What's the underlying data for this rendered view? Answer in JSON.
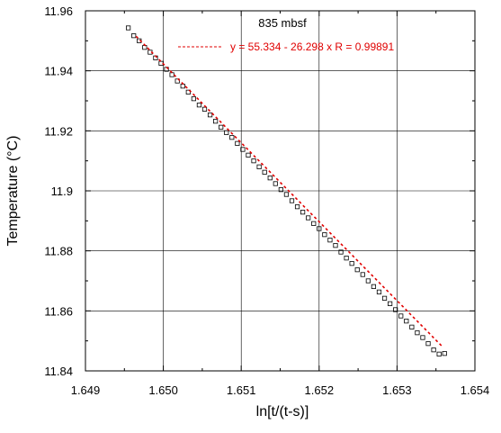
{
  "chart_data": {
    "type": "scatter",
    "title": "835 mbsf",
    "xlabel": "ln[t/(t-s)]",
    "ylabel": "Temperature  (°C)",
    "xlim": [
      1.649,
      1.654
    ],
    "ylim": [
      11.84,
      11.96
    ],
    "x_ticks": [
      "1.649",
      "1.650",
      "1.651",
      "1.652",
      "1.653",
      "1.654"
    ],
    "y_ticks": [
      "11.84",
      "11.86",
      "11.88",
      "11.9",
      "11.92",
      "11.94",
      "11.96"
    ],
    "grid": true,
    "fit": {
      "label": "y = 55.334 - 26.298  x R = 0.99891",
      "intercept": 55.334,
      "slope": -26.298,
      "x_range": [
        1.64965,
        1.65358
      ],
      "color": "#e00000"
    },
    "marker_color": "#000000",
    "points": {
      "x": [
        1.64955,
        1.64962,
        1.64969,
        1.64976,
        1.64983,
        1.6499,
        1.64997,
        1.65004,
        1.65011,
        1.65018,
        1.65025,
        1.65032,
        1.65039,
        1.65046,
        1.65053,
        1.6506,
        1.65067,
        1.65074,
        1.65081,
        1.65088,
        1.65095,
        1.65102,
        1.65109,
        1.65116,
        1.65123,
        1.6513,
        1.65137,
        1.65144,
        1.65151,
        1.65158,
        1.65165,
        1.65172,
        1.65179,
        1.65186,
        1.65193,
        1.652,
        1.65207,
        1.65214,
        1.65221,
        1.65228,
        1.65235,
        1.65242,
        1.65249,
        1.65256,
        1.65263,
        1.6527,
        1.65277,
        1.65284,
        1.65291,
        1.65298,
        1.65305,
        1.65312,
        1.65319,
        1.65326,
        1.65333,
        1.6534,
        1.65347,
        1.65354,
        1.65361
      ],
      "y": [
        11.9543,
        11.9517,
        11.95,
        11.9478,
        11.9462,
        11.9443,
        11.9425,
        11.9405,
        11.9387,
        11.9366,
        11.9349,
        11.9329,
        11.9307,
        11.9286,
        11.9272,
        11.9253,
        11.9232,
        11.9212,
        11.9194,
        11.9178,
        11.9158,
        11.9138,
        11.9119,
        11.91,
        11.908,
        11.9062,
        11.9043,
        11.9024,
        11.9004,
        11.8988,
        11.8967,
        11.8947,
        11.8929,
        11.891,
        11.8891,
        11.8874,
        11.8854,
        11.8836,
        11.8818,
        11.8796,
        11.8776,
        11.8758,
        11.8737,
        11.8721,
        11.87,
        11.8681,
        11.8663,
        11.8642,
        11.8624,
        11.8604,
        11.8583,
        11.8566,
        11.8546,
        11.8527,
        11.8511,
        11.8491,
        11.847,
        11.8456,
        11.8458
      ]
    }
  }
}
